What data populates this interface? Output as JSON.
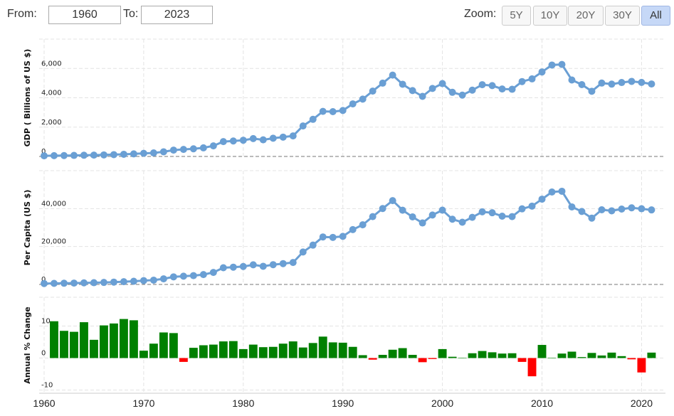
{
  "controls": {
    "from_label": "From:",
    "from": "1960",
    "to_label": "To:",
    "to": "2023",
    "zoom_label": "Zoom:",
    "zoom": [
      "5Y",
      "10Y",
      "20Y",
      "30Y",
      "All"
    ],
    "active": "All"
  },
  "chart_data": [
    {
      "type": "line",
      "y_label": "GDP ( Billions of US $)",
      "color": "#6a9fd4",
      "x": [
        1960,
        1961,
        1962,
        1963,
        1964,
        1965,
        1966,
        1967,
        1968,
        1969,
        1970,
        1971,
        1972,
        1973,
        1974,
        1975,
        1976,
        1977,
        1978,
        1979,
        1980,
        1981,
        1982,
        1983,
        1984,
        1985,
        1986,
        1987,
        1988,
        1989,
        1990,
        1991,
        1992,
        1993,
        1994,
        1995,
        1996,
        1997,
        1998,
        1999,
        2000,
        2001,
        2002,
        2003,
        2004,
        2005,
        2006,
        2007,
        2008,
        2009,
        2010,
        2011,
        2012,
        2013,
        2014,
        2015,
        2016,
        2017,
        2018,
        2019,
        2020,
        2021
      ],
      "values": [
        44,
        54,
        61,
        70,
        82,
        91,
        106,
        124,
        147,
        173,
        212,
        240,
        318,
        432,
        479,
        521,
        586,
        722,
        1013,
        1055,
        1105,
        1218,
        1134,
        1243,
        1318,
        1399,
        2079,
        2532,
        3072,
        3054,
        3133,
        3584,
        3909,
        4454,
        4998,
        5546,
        4923,
        4492,
        4098,
        4636,
        4968,
        4374,
        4183,
        4520,
        4893,
        4831,
        4601,
        4579,
        5106,
        5289,
        5759,
        6233,
        6272,
        5212,
        4897,
        4445,
        5004,
        4931,
        5041,
        5118,
        5048,
        4941
      ],
      "xlim": [
        1959.5,
        2022.4
      ],
      "xticks": [
        1960,
        1970,
        1980,
        1990,
        2000,
        2010,
        2020
      ],
      "ylim": [
        0,
        8000
      ],
      "yticks": [
        0,
        {
          "value": 2000,
          "label": "2,000"
        },
        {
          "value": 4000,
          "label": "4,000"
        },
        {
          "value": 6000,
          "label": "6,000"
        }
      ],
      "grid": true
    },
    {
      "type": "line",
      "y_label": "Per Capita (US $)",
      "color": "#6a9fd4",
      "x": [
        1960,
        1961,
        1962,
        1963,
        1964,
        1965,
        1966,
        1967,
        1968,
        1969,
        1970,
        1971,
        1972,
        1973,
        1974,
        1975,
        1976,
        1977,
        1978,
        1979,
        1980,
        1981,
        1982,
        1983,
        1984,
        1985,
        1986,
        1987,
        1988,
        1989,
        1990,
        1991,
        1992,
        1993,
        1994,
        1995,
        1996,
        1997,
        1998,
        1999,
        2000,
        2001,
        2002,
        2003,
        2004,
        2005,
        2006,
        2007,
        2008,
        2009,
        2010,
        2011,
        2012,
        2013,
        2014,
        2015,
        2016,
        2017,
        2018,
        2019,
        2020,
        2021
      ],
      "values": [
        479,
        564,
        634,
        718,
        835,
        919,
        1059,
        1229,
        1451,
        1669,
        2038,
        2272,
        2967,
        3997,
        4354,
        4659,
        5198,
        6335,
        8821,
        9105,
        9463,
        10361,
        9578,
        10425,
        10984,
        11584,
        17112,
        20745,
        25052,
        24813,
        25359,
        28925,
        31465,
        35766,
        40037,
        44198,
        39150,
        35636,
        32423,
        36610,
        39169,
        34406,
        32821,
        35387,
        38299,
        37813,
        35991,
        35779,
        39876,
        41309,
        44968,
        48760,
        49145,
        40898,
        38475,
        34961,
        39375,
        38834,
        39751,
        40416,
        39918,
        39313
      ],
      "xlim": [
        1959.5,
        2022.4
      ],
      "xticks": [
        1960,
        1970,
        1980,
        1990,
        2000,
        2010,
        2020
      ],
      "ylim": [
        0,
        60000
      ],
      "yticks": [
        0,
        {
          "value": 20000,
          "label": "20,000"
        },
        {
          "value": 40000,
          "label": "40,000"
        }
      ],
      "grid": true
    },
    {
      "type": "bar",
      "y_label": "Annual % Change",
      "positive_color": "#008000",
      "negative_color": "#ff0000",
      "x": [
        1961,
        1962,
        1963,
        1964,
        1965,
        1966,
        1967,
        1968,
        1969,
        1970,
        1971,
        1972,
        1973,
        1974,
        1975,
        1976,
        1977,
        1978,
        1979,
        1980,
        1981,
        1982,
        1983,
        1984,
        1985,
        1986,
        1987,
        1988,
        1989,
        1990,
        1991,
        1992,
        1993,
        1994,
        1995,
        1996,
        1997,
        1998,
        1999,
        2000,
        2001,
        2002,
        2003,
        2004,
        2005,
        2006,
        2007,
        2008,
        2009,
        2010,
        2011,
        2012,
        2013,
        2014,
        2015,
        2016,
        2017,
        2018,
        2019,
        2020,
        2021
      ],
      "values": [
        11.5,
        8.5,
        8.2,
        11.2,
        5.7,
        10.2,
        10.8,
        12.2,
        11.8,
        2.3,
        4.5,
        8.0,
        7.8,
        -1.2,
        3.2,
        4.0,
        4.2,
        5.2,
        5.3,
        2.8,
        4.2,
        3.4,
        3.5,
        4.5,
        5.2,
        3.3,
        4.7,
        6.7,
        4.9,
        4.8,
        3.5,
        0.9,
        -0.5,
        1.0,
        2.6,
        3.1,
        1.0,
        -1.3,
        -0.3,
        2.8,
        0.4,
        0.1,
        1.5,
        2.2,
        1.8,
        1.4,
        1.5,
        -1.2,
        -5.7,
        4.1,
        0.02,
        1.4,
        2.0,
        0.3,
        1.6,
        0.8,
        1.7,
        0.6,
        -0.4,
        -4.5,
        1.7
      ],
      "xlim": [
        1959.5,
        2022.4
      ],
      "xticks": [
        1960,
        1970,
        1980,
        1990,
        2000,
        2010,
        2020
      ],
      "ylim": [
        -11,
        19
      ],
      "yticks": [
        -10,
        0,
        10
      ],
      "grid": true
    }
  ]
}
